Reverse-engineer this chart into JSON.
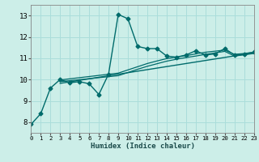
{
  "title": "",
  "xlabel": "Humidex (Indice chaleur)",
  "xlim": [
    0,
    23
  ],
  "ylim": [
    7.5,
    13.5
  ],
  "xticks": [
    0,
    1,
    2,
    3,
    4,
    5,
    6,
    7,
    8,
    9,
    10,
    11,
    12,
    13,
    14,
    15,
    16,
    17,
    18,
    19,
    20,
    21,
    22,
    23
  ],
  "yticks": [
    8,
    9,
    10,
    11,
    12,
    13
  ],
  "background_color": "#cceee8",
  "grid_color": "#aaddda",
  "line_color": "#006b6b",
  "series": [
    {
      "x": [
        0,
        1,
        2,
        3,
        4,
        5,
        6,
        7,
        8,
        9,
        10,
        11,
        12,
        13,
        14,
        15,
        16,
        17,
        18,
        19,
        20,
        21,
        22,
        23
      ],
      "y": [
        7.9,
        8.4,
        9.6,
        10.0,
        9.85,
        9.9,
        9.8,
        9.3,
        10.25,
        13.05,
        12.85,
        11.55,
        11.45,
        11.45,
        11.1,
        11.05,
        11.15,
        11.35,
        11.15,
        11.2,
        11.45,
        11.15,
        11.2,
        11.28
      ],
      "marker": "D",
      "markersize": 2.5,
      "linewidth": 1.0
    },
    {
      "x": [
        3,
        9,
        10,
        11,
        12,
        13,
        14,
        15,
        16,
        17,
        18,
        19,
        20,
        21,
        22,
        23
      ],
      "y": [
        9.98,
        10.3,
        10.45,
        10.6,
        10.75,
        10.87,
        10.98,
        11.05,
        11.12,
        11.2,
        11.28,
        11.33,
        11.38,
        11.18,
        11.22,
        11.28
      ],
      "marker": null,
      "markersize": 0,
      "linewidth": 0.9
    },
    {
      "x": [
        3,
        9,
        10,
        11,
        12,
        13,
        14,
        15,
        16,
        17,
        18,
        19,
        20,
        21,
        22,
        23
      ],
      "y": [
        9.9,
        10.18,
        10.33,
        10.48,
        10.62,
        10.74,
        10.86,
        10.95,
        11.03,
        11.1,
        11.18,
        11.25,
        11.32,
        11.1,
        11.16,
        11.22
      ],
      "marker": null,
      "markersize": 0,
      "linewidth": 0.9
    },
    {
      "x": [
        3,
        23
      ],
      "y": [
        9.82,
        11.25
      ],
      "marker": null,
      "markersize": 0,
      "linewidth": 1.0
    }
  ]
}
